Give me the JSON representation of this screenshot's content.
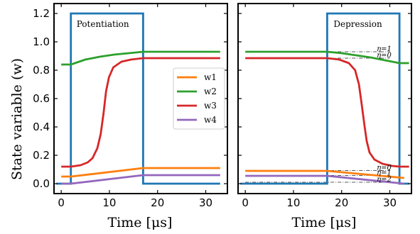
{
  "chart_data": [
    {
      "type": "line",
      "annotation": "Potentiation",
      "xlabel": "Time [μs]",
      "ylabel": "State variable (w)",
      "xlim": [
        -1.5,
        34.5
      ],
      "ylim": [
        -0.07,
        1.27
      ],
      "x_ticks": [
        0,
        10,
        20,
        30
      ],
      "y_ticks": [
        0.0,
        0.2,
        0.4,
        0.6,
        0.8,
        1.0,
        1.2
      ],
      "y_tick_labels": [
        "0.0",
        "0.2",
        "0.4",
        "0.6",
        "0.8",
        "1.0",
        "1.2"
      ],
      "legend": {
        "position": "center-right",
        "entries": [
          "w1",
          "w2",
          "w3",
          "w4"
        ]
      },
      "pulse": {
        "color": "#1f77b4",
        "points": [
          [
            -1,
            0
          ],
          [
            2,
            0
          ],
          [
            2,
            1.2
          ],
          [
            17,
            1.2
          ],
          [
            17,
            0
          ],
          [
            33,
            0
          ]
        ]
      },
      "series": [
        {
          "name": "w1",
          "color": "#ff7f0e",
          "points": [
            [
              0,
              0.05
            ],
            [
              2,
              0.05
            ],
            [
              17,
              0.11
            ],
            [
              33,
              0.11
            ]
          ]
        },
        {
          "name": "w2",
          "color": "#2ca02c",
          "points": [
            [
              0,
              0.84
            ],
            [
              2,
              0.84
            ],
            [
              5,
              0.875
            ],
            [
              8,
              0.895
            ],
            [
              11,
              0.91
            ],
            [
              14,
              0.92
            ],
            [
              17,
              0.93
            ],
            [
              33,
              0.93
            ]
          ]
        },
        {
          "name": "w3",
          "color": "#d62728",
          "points": [
            [
              0,
              0.12
            ],
            [
              2,
              0.12
            ],
            [
              4,
              0.13
            ],
            [
              5.5,
              0.15
            ],
            [
              6.5,
              0.18
            ],
            [
              7.5,
              0.25
            ],
            [
              8.2,
              0.35
            ],
            [
              8.8,
              0.5
            ],
            [
              9.3,
              0.65
            ],
            [
              9.9,
              0.75
            ],
            [
              10.8,
              0.82
            ],
            [
              12.5,
              0.86
            ],
            [
              14.5,
              0.875
            ],
            [
              17,
              0.885
            ],
            [
              33,
              0.885
            ]
          ]
        },
        {
          "name": "w4",
          "color": "#9467bd",
          "points": [
            [
              0,
              0.0
            ],
            [
              2,
              0.0
            ],
            [
              17,
              0.06
            ],
            [
              33,
              0.06
            ]
          ]
        }
      ]
    },
    {
      "type": "line",
      "annotation": "Depression",
      "xlabel": "Time [μs]",
      "xlim": [
        -1.5,
        34.5
      ],
      "ylim": [
        -0.07,
        1.27
      ],
      "x_ticks": [
        0,
        10,
        20,
        30
      ],
      "pulse": {
        "color": "#1f77b4",
        "points": [
          [
            -1,
            0
          ],
          [
            17,
            0
          ],
          [
            17,
            1.2
          ],
          [
            32,
            1.2
          ],
          [
            32,
            0
          ],
          [
            34,
            0
          ]
        ]
      },
      "series": [
        {
          "name": "w1",
          "color": "#ff7f0e",
          "points": [
            [
              0,
              0.09
            ],
            [
              17,
              0.09
            ],
            [
              33,
              0.04
            ]
          ]
        },
        {
          "name": "w2",
          "color": "#2ca02c",
          "points": [
            [
              0,
              0.93
            ],
            [
              17,
              0.93
            ],
            [
              20,
              0.92
            ],
            [
              23,
              0.905
            ],
            [
              26,
              0.89
            ],
            [
              29,
              0.87
            ],
            [
              32,
              0.85
            ],
            [
              34,
              0.85
            ]
          ]
        },
        {
          "name": "w3",
          "color": "#d62728",
          "points": [
            [
              0,
              0.885
            ],
            [
              17,
              0.885
            ],
            [
              19.5,
              0.875
            ],
            [
              21.5,
              0.85
            ],
            [
              22.8,
              0.8
            ],
            [
              23.6,
              0.7
            ],
            [
              24.2,
              0.55
            ],
            [
              24.7,
              0.42
            ],
            [
              25.2,
              0.3
            ],
            [
              25.8,
              0.22
            ],
            [
              26.8,
              0.17
            ],
            [
              28.5,
              0.14
            ],
            [
              30.5,
              0.125
            ],
            [
              32,
              0.12
            ],
            [
              34,
              0.12
            ]
          ]
        },
        {
          "name": "w4",
          "color": "#9467bd",
          "points": [
            [
              0,
              0.055
            ],
            [
              17,
              0.055
            ],
            [
              33,
              0.0
            ]
          ]
        }
      ],
      "reference_lines": [
        {
          "label": "η=1",
          "y": 0.93,
          "x": [
            0,
            30
          ]
        },
        {
          "label": "η=0",
          "y": 0.885,
          "x": [
            0,
            30
          ]
        },
        {
          "label": "η=0",
          "y": 0.093,
          "x": [
            0,
            30
          ]
        },
        {
          "label": "η=1",
          "y": 0.058,
          "x": [
            0,
            30
          ]
        },
        {
          "label": "η=2",
          "y": 0.01,
          "x": [
            0,
            30
          ]
        }
      ]
    }
  ]
}
